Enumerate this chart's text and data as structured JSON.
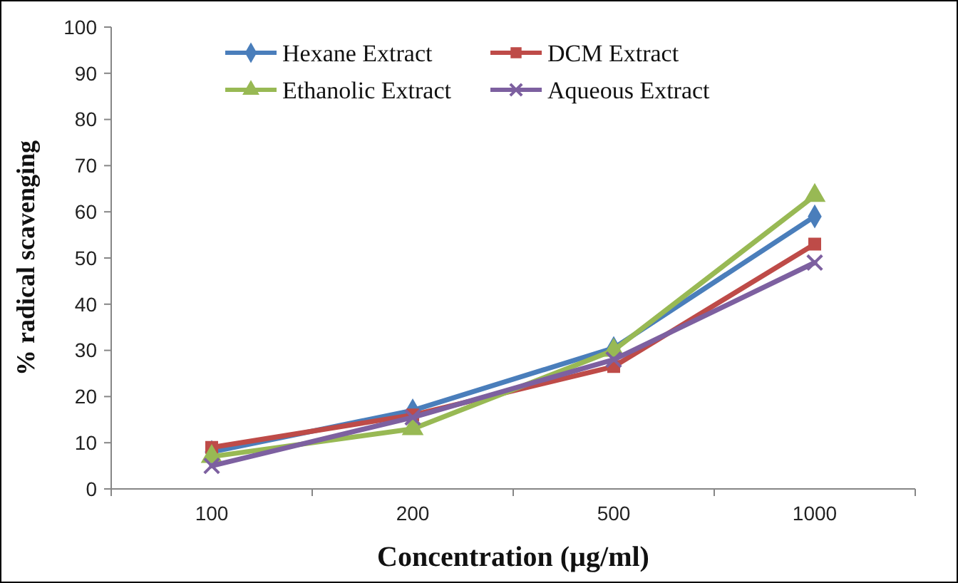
{
  "chart_data": {
    "type": "line",
    "xlabel": "Concentration  (µg/ml)",
    "ylabel": "% radical  scavenging",
    "categories": [
      "100",
      "200",
      "500",
      "1000"
    ],
    "series": [
      {
        "name": "Hexane Extract",
        "color": "#4a7ebb",
        "marker": "diamond",
        "values": [
          8,
          17,
          30.5,
          59
        ]
      },
      {
        "name": "DCM Extract",
        "color": "#be4b48",
        "marker": "square",
        "values": [
          9,
          16,
          26.5,
          53
        ]
      },
      {
        "name": "Ethanolic Extract",
        "color": "#98b954",
        "marker": "triangle",
        "values": [
          7,
          13,
          30,
          63.5
        ]
      },
      {
        "name": "Aqueous Extract",
        "color": "#7d60a0",
        "marker": "cross",
        "values": [
          5,
          15.5,
          28,
          49
        ]
      }
    ],
    "ylim": [
      0,
      100
    ],
    "yticks": [
      0,
      10,
      20,
      30,
      40,
      50,
      60,
      70,
      80,
      90,
      100
    ],
    "grid": false,
    "legend": "top",
    "line_style": "solid"
  }
}
